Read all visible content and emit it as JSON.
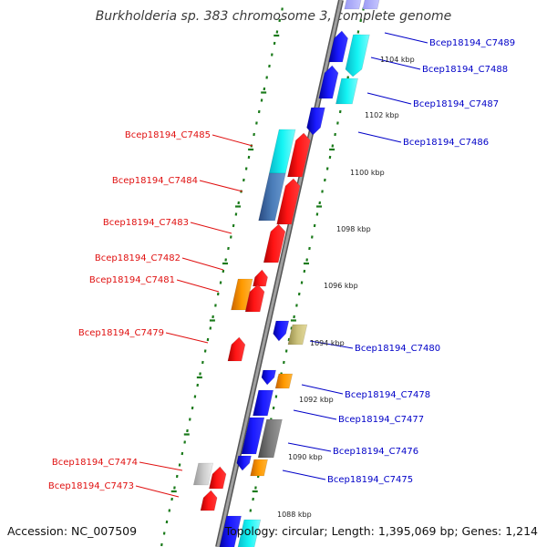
{
  "title": "Burkholderia sp. 383 chromosome 3, complete genome",
  "footer": {
    "accession": "Accession: NC_007509",
    "topology": "Topology: circular; Length: 1,395,069 bp; Genes: 1,214"
  },
  "colors": {
    "backbone": "#888888",
    "ruler": "#1a7a1a",
    "left_label": "#e01010",
    "right_label": "#0000c8",
    "gene_red": "#ff0a0a",
    "gene_blue": "#1414e6",
    "gene_cyan": "#10f0f0",
    "gene_orange": "#ff9600",
    "gene_steelblue": "#4678b4",
    "gene_khaki": "#c8be78",
    "gene_grey": "#7a7a7a",
    "gene_lightgrey": "#c4c4c4"
  },
  "kbp_labels": [
    "1104 kbp",
    "1102 kbp",
    "1100 kbp",
    "1098 kbp",
    "1096 kbp",
    "1094 kbp",
    "1092 kbp",
    "1090 kbp",
    "1088 kbp"
  ],
  "left_labels": [
    "Bcep18194_C7485",
    "Bcep18194_C7484",
    "Bcep18194_C7483",
    "Bcep18194_C7482",
    "Bcep18194_C7481",
    "Bcep18194_C7479",
    "Bcep18194_C7474",
    "Bcep18194_C7473"
  ],
  "right_labels": [
    "Bcep18194_C7489",
    "Bcep18194_C7488",
    "Bcep18194_C7487",
    "Bcep18194_C7486",
    "Bcep18194_C7480",
    "Bcep18194_C7478",
    "Bcep18194_C7477",
    "Bcep18194_C7476",
    "Bcep18194_C7475"
  ]
}
